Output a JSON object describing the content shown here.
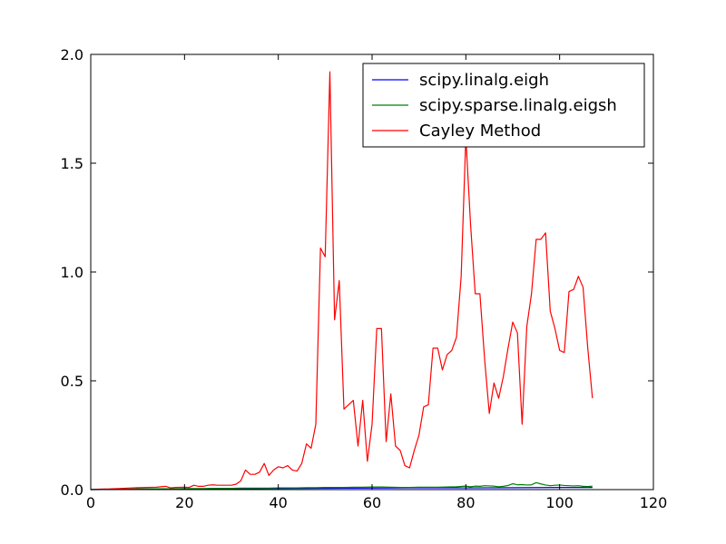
{
  "chart_data": {
    "type": "line",
    "title": "",
    "xlabel": "",
    "ylabel": "",
    "xlim": [
      0,
      120
    ],
    "ylim": [
      0,
      2.0
    ],
    "xticks": [
      0,
      20,
      40,
      60,
      80,
      100,
      120
    ],
    "yticks": [
      0.0,
      0.5,
      1.0,
      1.5,
      2.0
    ],
    "xtick_labels": [
      "0",
      "20",
      "40",
      "60",
      "80",
      "100",
      "120"
    ],
    "ytick_labels": [
      "0.0",
      "0.5",
      "1.0",
      "1.5",
      "2.0"
    ],
    "grid": false,
    "legend_position": "top-right",
    "series": [
      {
        "name": "scipy.linalg.eigh",
        "color": "#0000ff",
        "x": [
          0,
          10,
          20,
          30,
          40,
          50,
          60,
          70,
          80,
          90,
          100,
          107
        ],
        "y": [
          0.0,
          0.002,
          0.003,
          0.004,
          0.005,
          0.006,
          0.007,
          0.008,
          0.008,
          0.009,
          0.01,
          0.01
        ]
      },
      {
        "name": "scipy.sparse.linalg.eigsh",
        "color": "#008000",
        "x": [
          0,
          2,
          4,
          6,
          8,
          10,
          12,
          14,
          16,
          18,
          20,
          22,
          24,
          26,
          28,
          30,
          32,
          34,
          36,
          38,
          40,
          42,
          44,
          46,
          48,
          50,
          52,
          54,
          56,
          58,
          60,
          62,
          64,
          66,
          68,
          70,
          72,
          74,
          76,
          78,
          80,
          81,
          82,
          83,
          84,
          85,
          86,
          87,
          88,
          89,
          90,
          91,
          92,
          93,
          94,
          95,
          96,
          97,
          98,
          99,
          100,
          101,
          102,
          103,
          104,
          105,
          106,
          107
        ],
        "y": [
          0.0,
          0.001,
          0.001,
          0.002,
          0.002,
          0.003,
          0.003,
          0.004,
          0.004,
          0.004,
          0.005,
          0.005,
          0.005,
          0.006,
          0.006,
          0.006,
          0.007,
          0.007,
          0.007,
          0.007,
          0.008,
          0.008,
          0.008,
          0.009,
          0.009,
          0.01,
          0.01,
          0.01,
          0.011,
          0.011,
          0.012,
          0.012,
          0.011,
          0.01,
          0.01,
          0.011,
          0.011,
          0.011,
          0.012,
          0.013,
          0.016,
          0.013,
          0.016,
          0.015,
          0.018,
          0.017,
          0.016,
          0.013,
          0.015,
          0.019,
          0.027,
          0.022,
          0.023,
          0.021,
          0.022,
          0.032,
          0.026,
          0.021,
          0.018,
          0.02,
          0.021,
          0.019,
          0.018,
          0.017,
          0.018,
          0.015,
          0.014,
          0.016
        ]
      },
      {
        "name": "Cayley Method",
        "color": "#ff0000",
        "x": [
          0,
          2,
          4,
          6,
          8,
          10,
          12,
          14,
          16,
          17,
          18,
          20,
          21,
          22,
          23,
          24,
          25,
          26,
          27,
          28,
          29,
          30,
          31,
          32,
          33,
          34,
          35,
          36,
          37,
          38,
          39,
          40,
          41,
          42,
          43,
          44,
          45,
          46,
          47,
          48,
          49,
          50,
          51,
          52,
          53,
          54,
          55,
          56,
          57,
          58,
          59,
          60,
          61,
          62,
          63,
          64,
          65,
          66,
          67,
          68,
          69,
          70,
          71,
          72,
          73,
          74,
          75,
          76,
          77,
          78,
          79,
          80,
          81,
          82,
          83,
          84,
          85,
          86,
          87,
          88,
          89,
          90,
          91,
          92,
          93,
          94,
          95,
          96,
          97,
          98,
          99,
          100,
          101,
          102,
          103,
          104,
          105,
          106,
          107
        ],
        "y": [
          0.0,
          0.002,
          0.003,
          0.005,
          0.007,
          0.009,
          0.01,
          0.011,
          0.015,
          0.008,
          0.01,
          0.011,
          0.01,
          0.02,
          0.015,
          0.015,
          0.02,
          0.022,
          0.02,
          0.02,
          0.02,
          0.02,
          0.025,
          0.04,
          0.09,
          0.07,
          0.07,
          0.08,
          0.12,
          0.065,
          0.09,
          0.105,
          0.1,
          0.11,
          0.09,
          0.085,
          0.12,
          0.21,
          0.19,
          0.3,
          1.11,
          1.07,
          1.92,
          0.78,
          0.96,
          0.37,
          0.39,
          0.41,
          0.2,
          0.41,
          0.13,
          0.3,
          0.74,
          0.74,
          0.22,
          0.44,
          0.2,
          0.18,
          0.11,
          0.1,
          0.18,
          0.25,
          0.38,
          0.39,
          0.65,
          0.65,
          0.55,
          0.62,
          0.64,
          0.7,
          0.98,
          1.62,
          1.22,
          0.9,
          0.9,
          0.6,
          0.35,
          0.49,
          0.42,
          0.52,
          0.65,
          0.77,
          0.72,
          0.3,
          0.75,
          0.9,
          1.15,
          1.15,
          1.18,
          0.82,
          0.74,
          0.64,
          0.63,
          0.91,
          0.92,
          0.98,
          0.93,
          0.65,
          0.42
        ]
      }
    ]
  }
}
